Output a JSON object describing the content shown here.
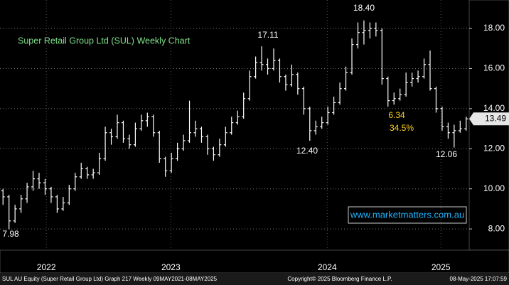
{
  "chart_data": {
    "type": "ohlc",
    "title": "Super Retail Group Ltd (SUL) Weekly Chart",
    "title_color": "#7ee08a",
    "color": "#ffffff",
    "ylim": [
      6.94,
      19.42
    ],
    "yticks": [
      {
        "value": 8,
        "label": "8.00"
      },
      {
        "value": 10,
        "label": "10.00"
      },
      {
        "value": 12,
        "label": "12.00"
      },
      {
        "value": 14,
        "label": "14.00"
      },
      {
        "value": 16,
        "label": "16.00"
      },
      {
        "value": 18,
        "label": "18.00"
      }
    ],
    "xlim": [
      0,
      78
    ],
    "xticks": [
      {
        "value": 7.7,
        "label": "2022"
      },
      {
        "value": 28.4,
        "label": "2023"
      },
      {
        "value": 54.4,
        "label": "2024"
      },
      {
        "value": 73.3,
        "label": "2025"
      }
    ],
    "grid": true,
    "last_price": {
      "value": 13.49,
      "label": "13.49"
    },
    "ohlc": [
      [
        9.9,
        10.0,
        9.2,
        9.6
      ],
      [
        9.6,
        9.7,
        7.98,
        8.4
      ],
      [
        8.4,
        9.2,
        8.3,
        9.0
      ],
      [
        9.0,
        9.7,
        8.8,
        9.5
      ],
      [
        9.5,
        10.3,
        9.3,
        10.1
      ],
      [
        10.1,
        10.9,
        9.9,
        10.5
      ],
      [
        10.5,
        10.8,
        10.0,
        10.3
      ],
      [
        10.3,
        10.5,
        9.7,
        10.0
      ],
      [
        10.0,
        10.1,
        9.3,
        9.6
      ],
      [
        9.6,
        9.7,
        8.8,
        9.0
      ],
      [
        9.0,
        9.6,
        8.9,
        9.3
      ],
      [
        9.3,
        10.2,
        9.2,
        10.0
      ],
      [
        10.0,
        10.8,
        9.9,
        10.6
      ],
      [
        10.6,
        11.3,
        10.5,
        11.0
      ],
      [
        11.0,
        11.1,
        10.5,
        10.7
      ],
      [
        10.7,
        11.0,
        10.5,
        10.8
      ],
      [
        10.8,
        11.8,
        10.7,
        11.5
      ],
      [
        11.5,
        13.1,
        11.4,
        12.8
      ],
      [
        12.8,
        13.0,
        12.2,
        12.6
      ],
      [
        12.6,
        13.7,
        12.5,
        13.3
      ],
      [
        13.3,
        13.4,
        12.3,
        12.5
      ],
      [
        12.5,
        12.7,
        12.0,
        12.2
      ],
      [
        12.2,
        13.3,
        12.1,
        13.0
      ],
      [
        13.0,
        13.7,
        12.9,
        13.4
      ],
      [
        13.4,
        13.8,
        13.1,
        13.6
      ],
      [
        13.6,
        13.7,
        12.6,
        12.8
      ],
      [
        12.8,
        12.9,
        11.3,
        11.5
      ],
      [
        11.5,
        11.6,
        10.6,
        10.9
      ],
      [
        10.9,
        11.8,
        10.8,
        11.5
      ],
      [
        11.5,
        12.3,
        11.4,
        12.0
      ],
      [
        12.0,
        12.7,
        11.9,
        12.4
      ],
      [
        12.4,
        14.4,
        12.3,
        12.8
      ],
      [
        12.8,
        13.4,
        12.6,
        13.0
      ],
      [
        13.0,
        13.1,
        12.3,
        12.6
      ],
      [
        12.6,
        12.7,
        11.7,
        12.0
      ],
      [
        12.0,
        12.1,
        11.4,
        11.7
      ],
      [
        11.7,
        12.5,
        11.6,
        12.2
      ],
      [
        12.2,
        13.1,
        12.1,
        12.8
      ],
      [
        12.8,
        13.6,
        12.7,
        13.3
      ],
      [
        13.3,
        13.9,
        13.2,
        13.6
      ],
      [
        13.6,
        14.8,
        13.5,
        14.5
      ],
      [
        14.5,
        15.9,
        14.4,
        15.6
      ],
      [
        15.6,
        16.6,
        15.5,
        16.3
      ],
      [
        16.3,
        17.11,
        15.9,
        16.2
      ],
      [
        16.2,
        16.5,
        15.7,
        16.0
      ],
      [
        16.0,
        17.0,
        15.9,
        16.4
      ],
      [
        16.4,
        16.5,
        15.3,
        15.6
      ],
      [
        15.6,
        15.7,
        14.9,
        15.2
      ],
      [
        15.2,
        16.2,
        15.1,
        15.7
      ],
      [
        15.7,
        15.8,
        14.7,
        15.0
      ],
      [
        15.0,
        15.1,
        13.7,
        14.0
      ],
      [
        14.0,
        14.1,
        12.4,
        12.9
      ],
      [
        12.9,
        13.4,
        12.7,
        13.1
      ],
      [
        13.1,
        13.6,
        13.0,
        13.3
      ],
      [
        13.3,
        14.1,
        13.2,
        13.8
      ],
      [
        13.8,
        14.6,
        13.7,
        14.3
      ],
      [
        14.3,
        15.3,
        14.2,
        15.0
      ],
      [
        15.0,
        16.1,
        14.9,
        15.8
      ],
      [
        15.8,
        17.5,
        15.7,
        17.2
      ],
      [
        17.2,
        18.3,
        17.0,
        17.8
      ],
      [
        17.8,
        18.4,
        17.2,
        17.9
      ],
      [
        17.9,
        18.3,
        17.5,
        18.0
      ],
      [
        18.0,
        18.3,
        17.6,
        17.9
      ],
      [
        17.9,
        18.0,
        15.2,
        15.5
      ],
      [
        15.5,
        15.6,
        14.1,
        14.4
      ],
      [
        14.4,
        14.8,
        14.2,
        14.5
      ],
      [
        14.5,
        15.0,
        14.4,
        14.7
      ],
      [
        14.7,
        15.8,
        14.6,
        15.3
      ],
      [
        15.3,
        15.8,
        15.1,
        15.5
      ],
      [
        15.5,
        15.9,
        15.3,
        15.6
      ],
      [
        15.6,
        16.5,
        15.5,
        16.2
      ],
      [
        16.2,
        16.9,
        14.9,
        15.0
      ],
      [
        15.0,
        15.1,
        13.8,
        14.0
      ],
      [
        14.0,
        14.1,
        12.9,
        13.1
      ],
      [
        13.1,
        13.3,
        12.5,
        12.8
      ],
      [
        12.8,
        13.2,
        12.06,
        12.9
      ],
      [
        12.9,
        13.4,
        12.8,
        13.0
      ],
      [
        13.0,
        13.6,
        12.9,
        13.49
      ]
    ],
    "annotations": [
      {
        "text": "7.98",
        "color": "#ffffff"
      },
      {
        "text": "17.11",
        "color": "#ffffff"
      },
      {
        "text": "18.40",
        "color": "#ffffff"
      },
      {
        "text": "12.40",
        "color": "#ffffff"
      },
      {
        "text": "6.34",
        "color": "#ffd21f"
      },
      {
        "text": "34.5%",
        "color": "#ffd21f"
      },
      {
        "text": "12.06",
        "color": "#ffffff"
      }
    ],
    "watermark": "www.marketmatters.com.au",
    "footer": {
      "left": "SUL AU Equity (Super Retail Group Ltd) Graph 217  Weekly 09MAY2021-08MAY2025",
      "center": "Copyright© 2025 Bloomberg Finance L.P.",
      "right": "08-May-2025 17:07:59"
    }
  }
}
